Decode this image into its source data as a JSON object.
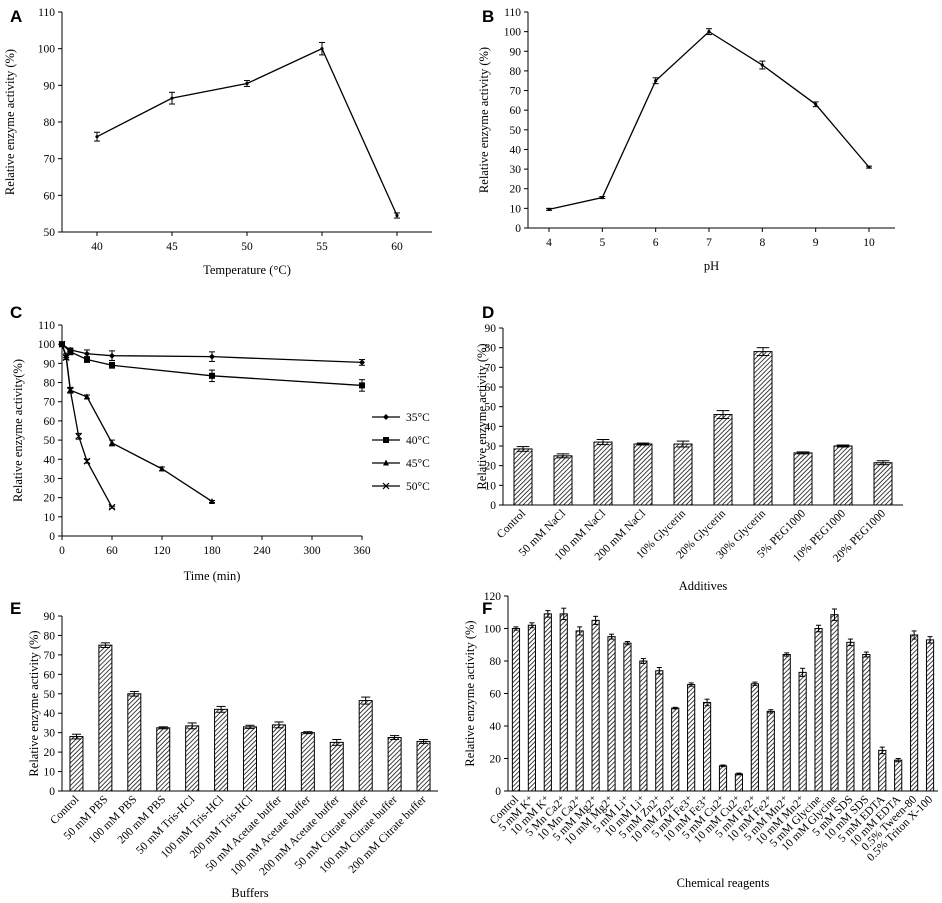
{
  "colors": {
    "ink": "#000000",
    "background": "#ffffff"
  },
  "chart_data": [
    {
      "id": "A",
      "panel_label": "A",
      "type": "line",
      "xlabel": "Temperature (°C)",
      "ylabel": "Relative enzyme activity (%)",
      "x": [
        40,
        45,
        50,
        55,
        60
      ],
      "series": [
        {
          "name": "activity",
          "values": [
            76,
            86.5,
            90.5,
            100,
            54.5
          ],
          "errors": [
            1.2,
            1.6,
            0.8,
            1.7,
            0.7
          ]
        }
      ],
      "xticks": [
        40,
        45,
        50,
        55,
        60
      ],
      "yticks": [
        50,
        60,
        70,
        80,
        90,
        100,
        110
      ],
      "ylim": [
        50,
        110
      ],
      "grid": false,
      "legend": "none"
    },
    {
      "id": "B",
      "panel_label": "B",
      "type": "line",
      "xlabel": "pH",
      "ylabel": "Relative enzyme activity (%)",
      "x": [
        4,
        5,
        6,
        7,
        8,
        9,
        10
      ],
      "series": [
        {
          "name": "activity",
          "values": [
            9.5,
            15.5,
            75,
            100,
            83,
            63,
            31
          ],
          "errors": [
            0.5,
            0.5,
            1.5,
            1.5,
            2,
            1.2,
            0.5
          ]
        }
      ],
      "xticks": [
        4,
        5,
        6,
        7,
        8,
        9,
        10
      ],
      "yticks": [
        0,
        10,
        20,
        30,
        40,
        50,
        60,
        70,
        80,
        90,
        100,
        110
      ],
      "ylim": [
        0,
        110
      ],
      "grid": false,
      "legend": "none"
    },
    {
      "id": "C",
      "panel_label": "C",
      "type": "line",
      "xlabel": "Time (min)",
      "ylabel": "Relative enzyme activity(%)",
      "xlim": [
        0,
        360
      ],
      "ylim": [
        0,
        110
      ],
      "xticks": [
        0,
        60,
        120,
        180,
        240,
        300,
        360
      ],
      "yticks": [
        0,
        10,
        20,
        30,
        40,
        50,
        60,
        70,
        80,
        90,
        100,
        110
      ],
      "legend": "right",
      "grid": false,
      "series": [
        {
          "name": "35°C",
          "marker": "diamond",
          "x": [
            0,
            10,
            30,
            60,
            180,
            360
          ],
          "values": [
            100,
            97,
            95,
            94,
            93.5,
            90.5
          ],
          "errors": [
            0.5,
            1,
            2,
            2.5,
            2.5,
            1.5
          ]
        },
        {
          "name": "40°C",
          "marker": "square",
          "x": [
            0,
            10,
            30,
            60,
            180,
            360
          ],
          "values": [
            100,
            96,
            92,
            89,
            83.5,
            78.5
          ],
          "errors": [
            0.5,
            1.5,
            1.5,
            1.5,
            3,
            3
          ]
        },
        {
          "name": "45°C",
          "marker": "triangle",
          "x": [
            0,
            5,
            10,
            30,
            60,
            120,
            180
          ],
          "values": [
            100,
            94,
            76,
            72.5,
            48.5,
            35,
            18
          ],
          "errors": [
            0.5,
            1,
            1,
            1,
            1.5,
            1,
            0.5
          ]
        },
        {
          "name": "50°C",
          "marker": "cross",
          "x": [
            0,
            5,
            10,
            20,
            30,
            60
          ],
          "values": [
            100,
            93,
            76,
            52,
            39,
            15
          ],
          "errors": [
            0.5,
            1,
            1.5,
            1.5,
            1,
            0.5
          ]
        }
      ]
    },
    {
      "id": "D",
      "panel_label": "D",
      "type": "bar",
      "xlabel": "Additives",
      "ylabel": "Relative enzyme activity (%)",
      "categories": [
        "Control",
        "50 mM NaCl",
        "100 mM NaCl",
        "200 mM NaCl",
        "10% Glycerin",
        "20% Glycerin",
        "30% Glycerin",
        "5% PEG1000",
        "10% PEG1000",
        "20% PEG1000"
      ],
      "values": [
        28.5,
        25,
        32,
        31,
        31,
        46,
        78,
        26.5,
        30,
        21.5
      ],
      "errors": [
        1.2,
        1,
        1.3,
        0.5,
        1.5,
        2,
        2,
        0.5,
        0.5,
        1
      ],
      "ylim": [
        0,
        90
      ],
      "yticks": [
        0,
        10,
        20,
        30,
        40,
        50,
        60,
        70,
        80,
        90
      ],
      "grid": false,
      "legend": "none"
    },
    {
      "id": "E",
      "panel_label": "E",
      "type": "bar",
      "xlabel": "Buffers",
      "ylabel": "Relative enzyme activity (%)",
      "categories": [
        "Control",
        "50 mM PBS",
        "100 mM PBS",
        "200 mM PBS",
        "50 mM Tris-HCl",
        "100 mM Tris-HCl",
        "200 mM Tris-HCl",
        "50 mM Acetate buffer",
        "100 mM Acetate buffer",
        "200 mM Acetate buffer",
        "50 mM Citrate buffer",
        "100 mM Citrate buffer",
        "200 mM Citrate buffer"
      ],
      "values": [
        28,
        75,
        50,
        32.5,
        33.5,
        42,
        33,
        34,
        30,
        25,
        46.5,
        27.5,
        25.5
      ],
      "errors": [
        1.2,
        1.2,
        1.2,
        0.5,
        1.5,
        1.5,
        0.8,
        1.5,
        0.5,
        1.5,
        1.8,
        1,
        1
      ],
      "ylim": [
        0,
        90
      ],
      "yticks": [
        0,
        10,
        20,
        30,
        40,
        50,
        60,
        70,
        80,
        90
      ],
      "grid": false,
      "legend": "none"
    },
    {
      "id": "F",
      "panel_label": "F",
      "type": "bar",
      "xlabel": "Chemical reagents",
      "ylabel": "Relative enzyme activity (%)",
      "categories": [
        "Control",
        "5 mM K⁺",
        "10 mM K⁺",
        "5 Mn Ca2⁺",
        "10 Mn Ca2⁺",
        "5 mM Mg2⁺",
        "10 mM Mg2⁺",
        "5 mM Li⁺",
        "10 mM Li⁺",
        "5 mM Zn2⁺",
        "10 mM Zn2⁺",
        "5 mM Fe3⁺",
        "10 mM Fe3⁺",
        "5 mM Cu2⁺",
        "10 mM Cu2⁺",
        "5 mM Fe2⁺",
        "10 mM Fe2⁺",
        "5 mM Mn2⁺",
        "10 mM Mn2⁺",
        "5 mM Glycine",
        "10 mM Glycine",
        "5 mM SDS",
        "10 mM SDS",
        "5 mM EDTA",
        "10 mM EDTA",
        "0.5% Tween-80",
        "0.5% Triton X-100"
      ],
      "values": [
        100,
        102,
        109,
        109,
        98.5,
        105,
        95,
        91,
        80,
        74,
        51,
        65.5,
        54.5,
        15.5,
        10.5,
        66,
        49,
        84,
        73,
        100,
        108.5,
        91.5,
        84,
        25,
        19,
        96,
        93
      ],
      "errors": [
        1,
        1.5,
        2,
        3.5,
        2.5,
        2.5,
        1.5,
        1,
        1.5,
        2,
        0.5,
        1,
        2,
        0.5,
        0.5,
        1,
        1,
        1,
        2.5,
        2,
        3.5,
        2,
        1.5,
        2,
        1,
        2.5,
        2
      ],
      "ylim": [
        0,
        120
      ],
      "yticks": [
        0,
        20,
        40,
        60,
        80,
        100,
        120
      ],
      "grid": false,
      "legend": "none"
    }
  ]
}
